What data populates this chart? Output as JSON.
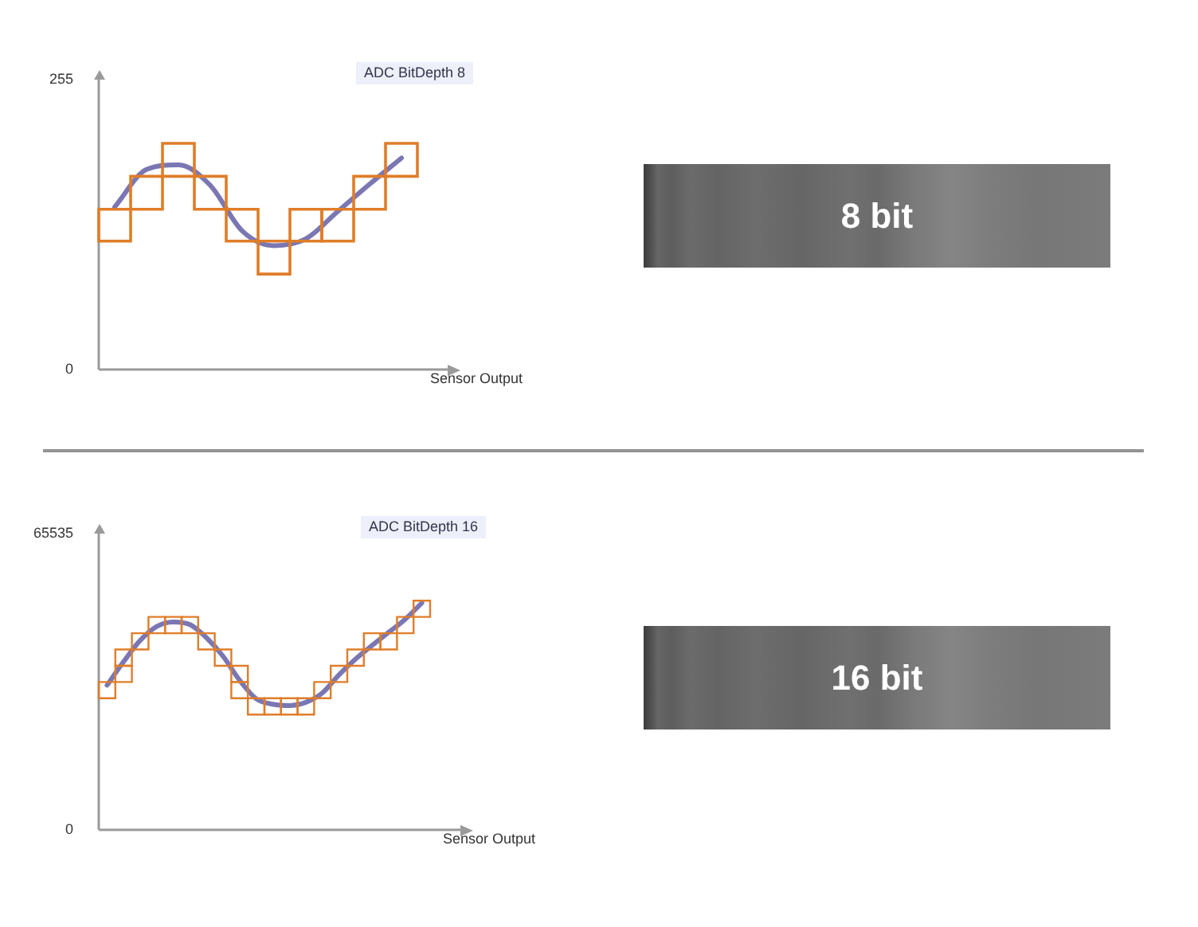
{
  "chart_data": [
    {
      "type": "bar",
      "title": "ADC BitDepth 8",
      "xlabel": "Sensor Output",
      "categories": [
        null,
        null,
        null,
        null,
        null,
        null,
        null,
        null,
        null,
        null
      ],
      "ylim": [
        0,
        255
      ],
      "yticks": [
        0,
        255
      ],
      "tick_labels": "y",
      "series": [
        {
          "type": "bar",
          "color": "#e07d28",
          "base": [
            113,
            141,
            170,
            141,
            113,
            84,
            113,
            113,
            141,
            170
          ],
          "values": [
            28,
            29,
            29,
            29,
            28,
            29,
            28,
            28,
            29,
            29
          ]
        },
        {
          "type": "line",
          "color": "#7a77b3",
          "values": [
            143,
            176,
            180,
            162,
            122,
            109,
            115,
            139,
            163,
            186
          ]
        }
      ]
    },
    {
      "type": "other",
      "title": "8 bit"
    },
    {
      "type": "bar",
      "title": "ADC BitDepth 16",
      "xlabel": "Sensor Output",
      "categories": [
        null,
        null,
        null,
        null,
        null,
        null,
        null,
        null,
        null,
        null,
        null,
        null,
        null,
        null,
        null,
        null,
        null,
        null,
        null,
        null
      ],
      "ylim": [
        0,
        65535
      ],
      "yticks": [
        0,
        65535
      ],
      "tick_labels": "y",
      "series": [
        {
          "type": "bar",
          "color": "#e07d28",
          "base": [
            29100,
            32700,
            39900,
            43500,
            43500,
            43500,
            39900,
            36300,
            29100,
            25500,
            25500,
            25500,
            25500,
            29100,
            32700,
            36300,
            39900,
            39900,
            43500,
            47100
          ],
          "values": [
            3600,
            3600,
            3600,
            3600,
            3600,
            3600,
            3600,
            3600,
            3600,
            3600,
            3600,
            3600,
            3600,
            3600,
            3600,
            3600,
            3600,
            3600,
            3600,
            3600
          ]
        },
        {
          "type": "bar",
          "color": "#e07d28",
          "base": [
            null,
            36300,
            null,
            null,
            null,
            null,
            null,
            null,
            32700,
            null,
            null,
            null,
            null,
            null,
            null,
            null,
            null,
            null,
            null,
            null
          ],
          "values": [
            null,
            3600,
            null,
            null,
            null,
            null,
            null,
            null,
            3600,
            null,
            null,
            null,
            null,
            null,
            null,
            null,
            null,
            null,
            null,
            null
          ]
        },
        {
          "type": "line",
          "color": "#7a77b3",
          "values": [
            32000,
            37200,
            41900,
            45000,
            46000,
            45400,
            42500,
            38400,
            33100,
            29000,
            27800,
            27500,
            28200,
            30300,
            34300,
            37800,
            40800,
            43700,
            46600,
            50200
          ]
        }
      ]
    },
    {
      "type": "other",
      "title": "16 bit"
    }
  ]
}
